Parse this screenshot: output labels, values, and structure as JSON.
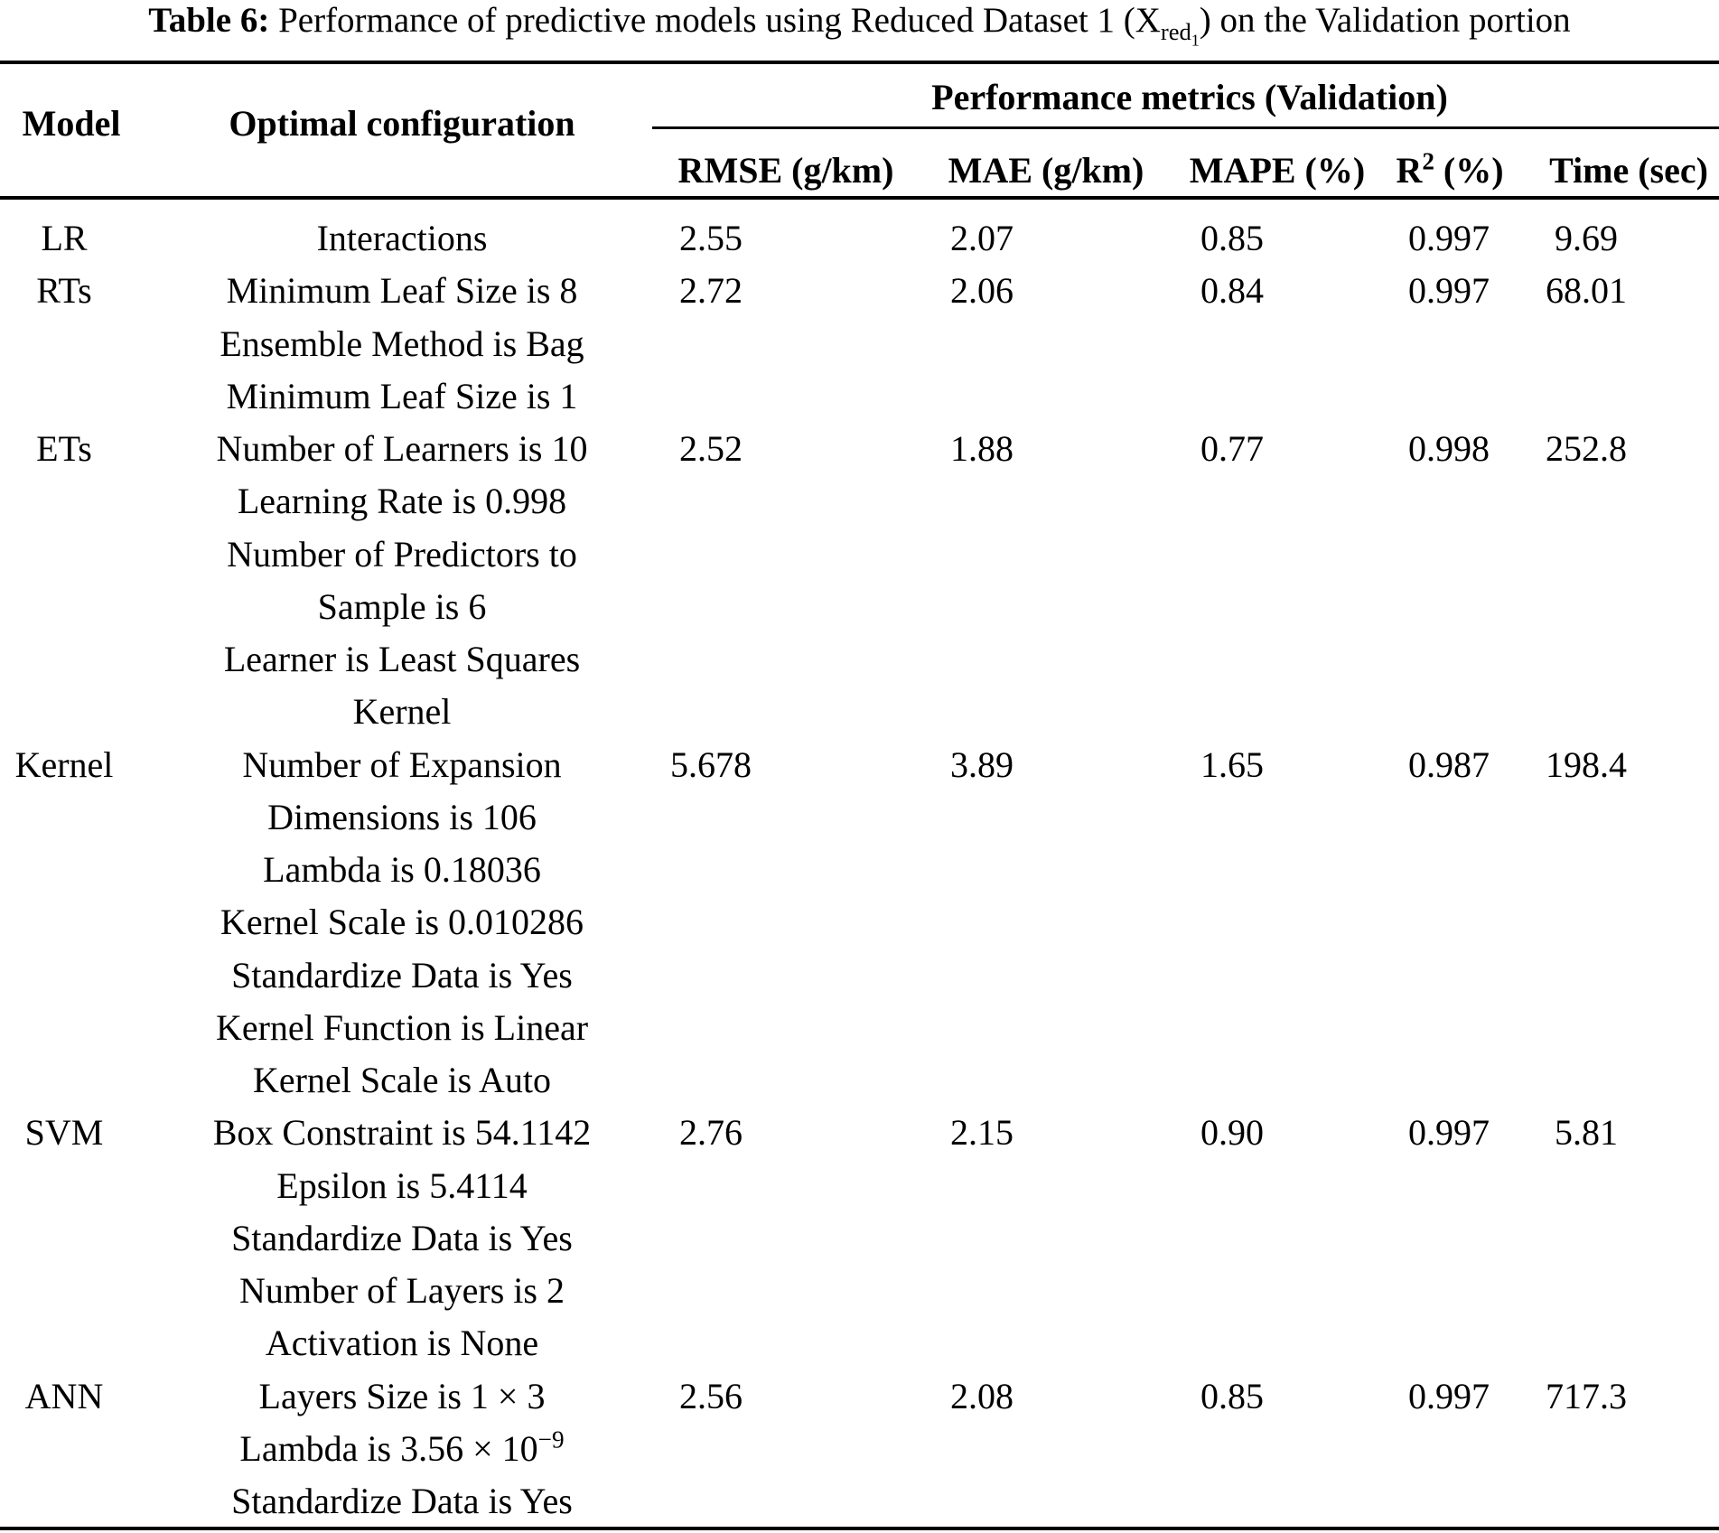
{
  "colors": {
    "background": "#ffffff",
    "text": "#000000",
    "rule": "#000000"
  },
  "caption": {
    "label": "Table 6:",
    "text": " Performance of predictive models using Reduced Dataset 1 (X_{red_{1}}) on the Validation portion"
  },
  "header": {
    "model": "Model",
    "config": "Optimal configuration",
    "metrics_group": "Performance metrics (Validation)",
    "columns": {
      "rmse": "RMSE (g/km)",
      "mae": "MAE (g/km)",
      "mape": "MAPE (%)",
      "r2": "R^{2} (%)",
      "time": "Time (sec)"
    }
  },
  "table": {
    "rows": [
      {
        "model": "LR",
        "metrics_line": 0,
        "config_lines": [
          "Interactions"
        ],
        "metrics": {
          "rmse": "2.55",
          "mae": "2.07",
          "mape": "0.85",
          "r2": "0.997",
          "time": "9.69"
        }
      },
      {
        "model": "RTs",
        "metrics_line": 0,
        "config_lines": [
          "Minimum Leaf Size is 8"
        ],
        "metrics": {
          "rmse": "2.72",
          "mae": "2.06",
          "mape": "0.84",
          "r2": "0.997",
          "time": "68.01"
        }
      },
      {
        "model": "ETs",
        "metrics_line": 2,
        "config_lines": [
          "Ensemble Method is Bag",
          "Minimum Leaf Size is 1",
          "Number of Learners is 10",
          "Learning Rate is 0.998",
          "Number of Predictors to",
          "Sample is 6"
        ],
        "metrics": {
          "rmse": "2.52",
          "mae": "1.88",
          "mape": "0.77",
          "r2": "0.998",
          "time": "252.8"
        }
      },
      {
        "model": "Kernel",
        "metrics_line": 2,
        "config_lines": [
          "Learner is Least Squares",
          "Kernel",
          "Number of Expansion",
          "Dimensions is 106",
          "Lambda is 0.18036",
          "Kernel Scale is 0.010286",
          "Standardize Data is Yes"
        ],
        "metrics": {
          "rmse": "5.678",
          "mae": "3.89",
          "mape": "1.65",
          "r2": "0.987",
          "time": "198.4"
        }
      },
      {
        "model": "SVM",
        "metrics_line": 2,
        "config_lines": [
          "Kernel Function is Linear",
          "Kernel Scale is Auto",
          "Box Constraint is 54.1142",
          "Epsilon is 5.4114",
          "Standardize Data is Yes"
        ],
        "metrics": {
          "rmse": "2.76",
          "mae": "2.15",
          "mape": "0.90",
          "r2": "0.997",
          "time": "5.81"
        }
      },
      {
        "model": "ANN",
        "metrics_line": 2,
        "config_lines": [
          "Number of Layers is 2",
          "Activation is None",
          "Layers Size is 1 × 3",
          "Lambda is 3.56 × 10^{−9}",
          "Standardize Data is Yes"
        ],
        "metrics": {
          "rmse": "2.56",
          "mae": "2.08",
          "mape": "0.85",
          "r2": "0.997",
          "time": "717.3"
        }
      }
    ]
  }
}
